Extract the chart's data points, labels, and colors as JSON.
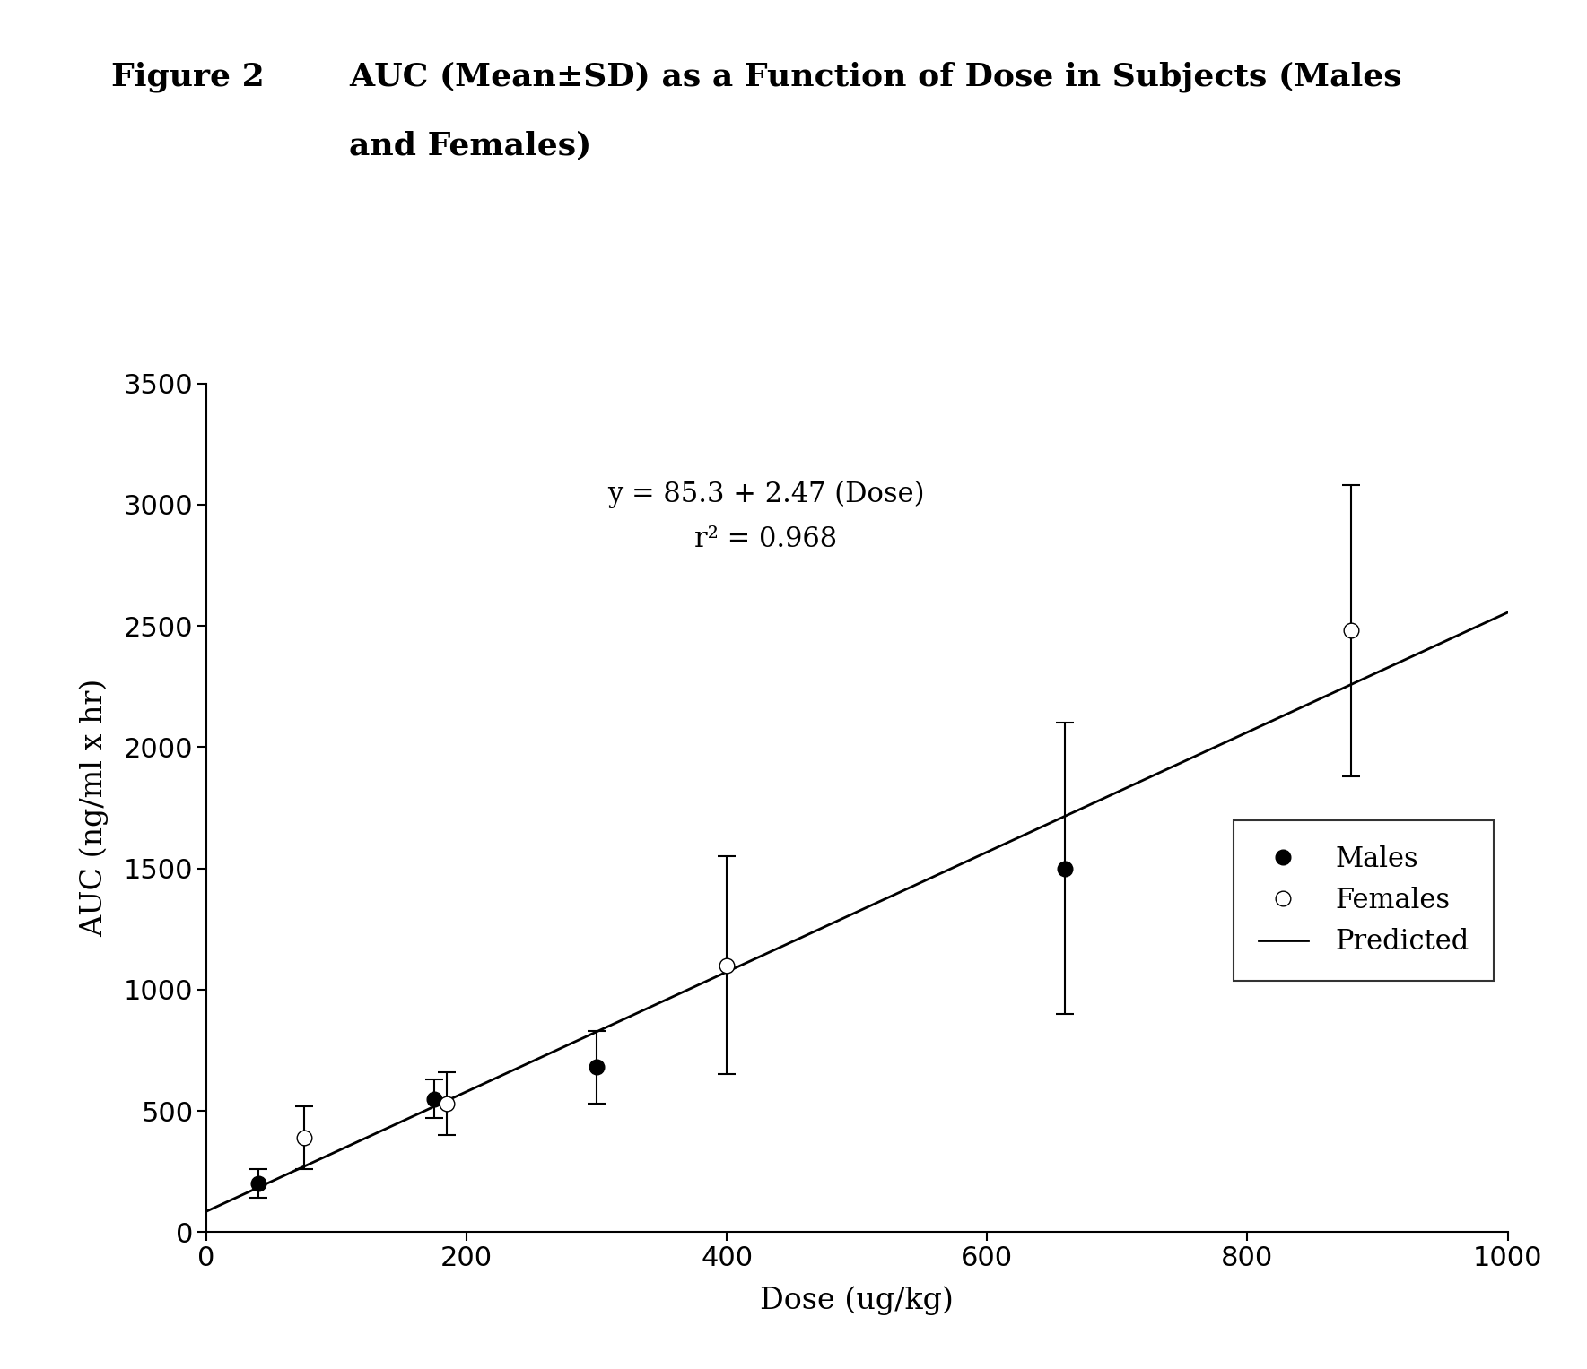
{
  "title_label": "Figure 2",
  "title_text": "AUC (Mean±SD) as a Function of Dose in Subjects (Males",
  "title_text2": "and Females)",
  "xlabel": "Dose (ug/kg)",
  "ylabel": "AUC (ng/ml x hr)",
  "xlim": [
    0,
    1000
  ],
  "ylim": [
    0,
    3500
  ],
  "xticks": [
    0,
    200,
    400,
    600,
    800,
    1000
  ],
  "yticks": [
    0,
    500,
    1000,
    1500,
    2000,
    2500,
    3000,
    3500
  ],
  "equation_line1": "y = 85.3 + 2.47 (Dose)",
  "equation_line2": "r² = 0.968",
  "equation_x": 430,
  "equation_y": 3100,
  "intercept": 85.3,
  "slope": 2.47,
  "males_dose": [
    40,
    175,
    300,
    660
  ],
  "males_auc": [
    200,
    550,
    680,
    1500
  ],
  "males_sd": [
    60,
    80,
    150,
    600
  ],
  "females_dose": [
    75,
    185,
    400,
    880
  ],
  "females_auc": [
    390,
    530,
    1100,
    2480
  ],
  "females_sd": [
    130,
    130,
    450,
    600
  ],
  "line_x_start": 0,
  "line_x_end": 1000,
  "background_color": "#ffffff",
  "marker_size": 12,
  "line_width": 2.0,
  "title_fontsize": 26,
  "tick_fontsize": 22,
  "label_fontsize": 24,
  "eq_fontsize": 22,
  "legend_fontsize": 22
}
